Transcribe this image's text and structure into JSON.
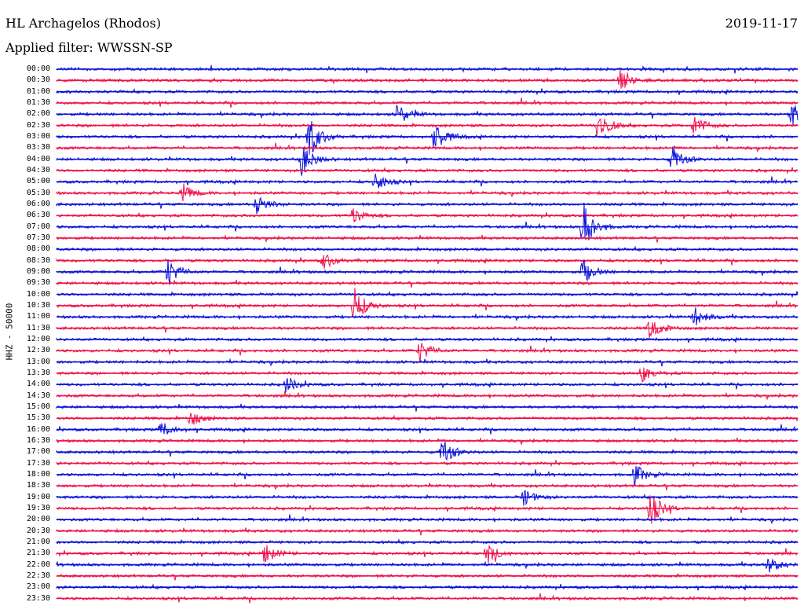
{
  "header": {
    "title": "HL Archagelos (Rhodos)",
    "date": "2019-11-17",
    "filter": "Applied filter: WWSSN-SP"
  },
  "axis": {
    "ylabel": "HHZ - 50000"
  },
  "colors": {
    "blue": "#0a10d8",
    "red": "#f0104a"
  },
  "chart_data": {
    "type": "line",
    "title": "HL Archagelos (Rhodos)",
    "subtitle": "Applied filter: WWSSN-SP",
    "ylabel": "HHZ - 50000",
    "xlabel": "",
    "series_colors_alternate": [
      "blue",
      "red"
    ],
    "rows": [
      "00:00",
      "00:30",
      "01:00",
      "01:30",
      "02:00",
      "02:30",
      "03:00",
      "03:30",
      "04:00",
      "04:30",
      "05:00",
      "05:30",
      "06:00",
      "06:30",
      "07:00",
      "07:30",
      "08:00",
      "08:30",
      "09:00",
      "09:30",
      "10:00",
      "10:30",
      "11:00",
      "11:30",
      "12:00",
      "12:30",
      "13:00",
      "13:30",
      "14:00",
      "14:30",
      "15:00",
      "15:30",
      "16:00",
      "16:30",
      "17:00",
      "17:30",
      "18:00",
      "18:30",
      "19:00",
      "19:30",
      "20:00",
      "20:30",
      "21:00",
      "21:30",
      "22:00",
      "22:30",
      "23:00",
      "23:30"
    ],
    "events": [
      {
        "row": "00:30",
        "x": 0.76,
        "amp": 1.0
      },
      {
        "row": "02:00",
        "x": 0.46,
        "amp": 1.1
      },
      {
        "row": "02:00",
        "x": 0.99,
        "amp": 1.2
      },
      {
        "row": "02:30",
        "x": 0.73,
        "amp": 1.6
      },
      {
        "row": "02:30",
        "x": 0.86,
        "amp": 1.0
      },
      {
        "row": "03:00",
        "x": 0.34,
        "amp": 2.2
      },
      {
        "row": "03:00",
        "x": 0.51,
        "amp": 1.5
      },
      {
        "row": "04:00",
        "x": 0.33,
        "amp": 1.6
      },
      {
        "row": "04:00",
        "x": 0.83,
        "amp": 1.3
      },
      {
        "row": "05:00",
        "x": 0.43,
        "amp": 1.0
      },
      {
        "row": "05:30",
        "x": 0.17,
        "amp": 0.8
      },
      {
        "row": "06:00",
        "x": 0.27,
        "amp": 1.0
      },
      {
        "row": "06:30",
        "x": 0.4,
        "amp": 0.8
      },
      {
        "row": "07:00",
        "x": 0.71,
        "amp": 2.6
      },
      {
        "row": "08:30",
        "x": 0.36,
        "amp": 0.8
      },
      {
        "row": "09:00",
        "x": 0.15,
        "amp": 1.4
      },
      {
        "row": "09:00",
        "x": 0.71,
        "amp": 1.2
      },
      {
        "row": "10:30",
        "x": 0.4,
        "amp": 2.0
      },
      {
        "row": "11:00",
        "x": 0.86,
        "amp": 1.0
      },
      {
        "row": "11:30",
        "x": 0.8,
        "amp": 1.2
      },
      {
        "row": "12:30",
        "x": 0.49,
        "amp": 1.1
      },
      {
        "row": "13:30",
        "x": 0.79,
        "amp": 0.8
      },
      {
        "row": "14:00",
        "x": 0.31,
        "amp": 0.8
      },
      {
        "row": "15:30",
        "x": 0.18,
        "amp": 0.8
      },
      {
        "row": "16:00",
        "x": 0.14,
        "amp": 0.8
      },
      {
        "row": "17:00",
        "x": 0.52,
        "amp": 1.4
      },
      {
        "row": "18:00",
        "x": 0.78,
        "amp": 1.0
      },
      {
        "row": "19:00",
        "x": 0.63,
        "amp": 0.8
      },
      {
        "row": "19:30",
        "x": 0.8,
        "amp": 1.8
      },
      {
        "row": "21:30",
        "x": 0.28,
        "amp": 1.0
      },
      {
        "row": "21:30",
        "x": 0.58,
        "amp": 1.0
      },
      {
        "row": "22:00",
        "x": 0.96,
        "amp": 0.8
      }
    ]
  }
}
